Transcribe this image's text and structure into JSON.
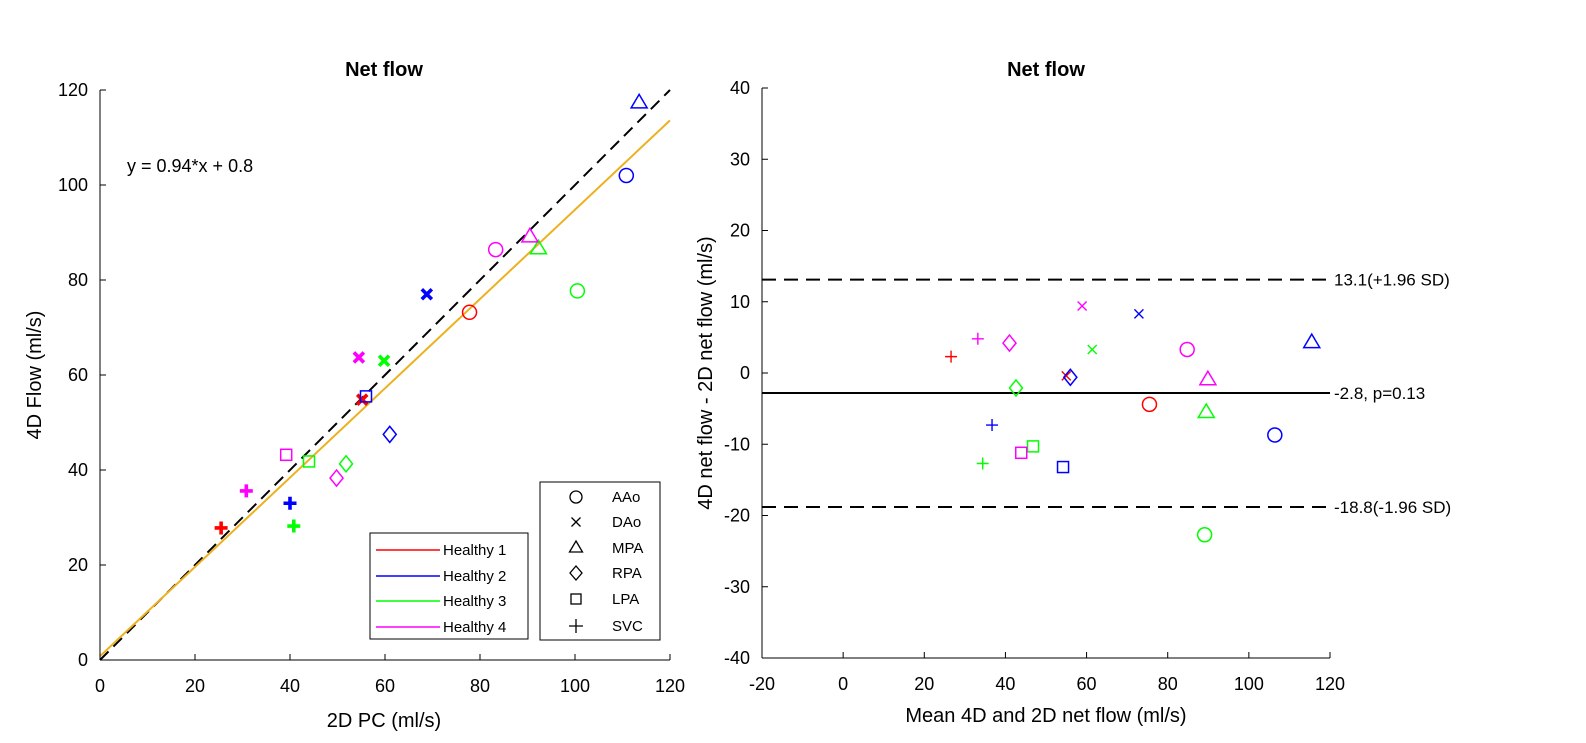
{
  "figure": {
    "background": "#ffffff",
    "colors": {
      "healthy1": "#ff0000",
      "healthy2": "#0000ff",
      "healthy3": "#00ff00",
      "healthy4": "#ff00ff",
      "fit_line": "#edb120",
      "identity_line": "#000000"
    }
  },
  "chart_data": [
    {
      "type": "scatter",
      "title": "Net flow",
      "xlabel": "2D PC (ml/s)",
      "ylabel": "4D Flow (ml/s)",
      "xlim": [
        0,
        120
      ],
      "ylim": [
        0,
        120
      ],
      "xticks": [
        0,
        20,
        40,
        60,
        80,
        100,
        120
      ],
      "yticks": [
        0,
        20,
        40,
        60,
        80,
        100,
        120
      ],
      "equation_text": "y = 0.94*x + 0.8",
      "fit": {
        "slope": 0.94,
        "intercept": 0.8
      },
      "identity_line": {
        "slope": 1,
        "intercept": 0,
        "style": "dashed"
      },
      "legend_healthy": {
        "location": "bottom-right",
        "entries": [
          {
            "label": "Healthy 1",
            "color": "#ff0000"
          },
          {
            "label": "Healthy 2",
            "color": "#0000ff"
          },
          {
            "label": "Healthy 3",
            "color": "#00ff00"
          },
          {
            "label": "Healthy 4",
            "color": "#ff00ff"
          }
        ]
      },
      "legend_vessels": {
        "location": "bottom-right",
        "entries": [
          {
            "label": "AAo",
            "marker": "circle"
          },
          {
            "label": "DAo",
            "marker": "x"
          },
          {
            "label": "MPA",
            "marker": "triangle"
          },
          {
            "label": "RPA",
            "marker": "diamond"
          },
          {
            "label": "LPA",
            "marker": "square"
          },
          {
            "label": "SVC",
            "marker": "plus"
          }
        ]
      },
      "points": [
        {
          "subject": "Healthy 1",
          "vessel": "AAo",
          "x": 77.8,
          "y": 73.2
        },
        {
          "subject": "Healthy 1",
          "vessel": "DAo",
          "x": 55.2,
          "y": 54.8
        },
        {
          "subject": "Healthy 1",
          "vessel": "SVC",
          "x": 25.5,
          "y": 27.8
        },
        {
          "subject": "Healthy 2",
          "vessel": "AAo",
          "x": 110.8,
          "y": 102.0
        },
        {
          "subject": "Healthy 2",
          "vessel": "DAo",
          "x": 68.8,
          "y": 77.0
        },
        {
          "subject": "Healthy 2",
          "vessel": "MPA",
          "x": 113.5,
          "y": 117.5
        },
        {
          "subject": "Healthy 2",
          "vessel": "RPA",
          "x": 61.0,
          "y": 47.5
        },
        {
          "subject": "Healthy 2",
          "vessel": "LPA",
          "x": 56.0,
          "y": 55.5
        },
        {
          "subject": "Healthy 2",
          "vessel": "SVC",
          "x": 40.0,
          "y": 33.0
        },
        {
          "subject": "Healthy 3",
          "vessel": "AAo",
          "x": 100.5,
          "y": 77.7
        },
        {
          "subject": "Healthy 3",
          "vessel": "DAo",
          "x": 59.8,
          "y": 63.0
        },
        {
          "subject": "Healthy 3",
          "vessel": "MPA",
          "x": 92.3,
          "y": 86.8
        },
        {
          "subject": "Healthy 3",
          "vessel": "RPA",
          "x": 51.8,
          "y": 41.3
        },
        {
          "subject": "Healthy 3",
          "vessel": "LPA",
          "x": 44.0,
          "y": 41.8
        },
        {
          "subject": "Healthy 3",
          "vessel": "SVC",
          "x": 40.8,
          "y": 28.2
        },
        {
          "subject": "Healthy 4",
          "vessel": "AAo",
          "x": 83.3,
          "y": 86.4
        },
        {
          "subject": "Healthy 4",
          "vessel": "DAo",
          "x": 54.5,
          "y": 63.7
        },
        {
          "subject": "Healthy 4",
          "vessel": "MPA",
          "x": 90.5,
          "y": 89.3
        },
        {
          "subject": "Healthy 4",
          "vessel": "RPA",
          "x": 49.8,
          "y": 38.3
        },
        {
          "subject": "Healthy 4",
          "vessel": "LPA",
          "x": 39.2,
          "y": 43.2
        },
        {
          "subject": "Healthy 4",
          "vessel": "SVC",
          "x": 30.8,
          "y": 35.6
        }
      ]
    },
    {
      "type": "scatter",
      "title": "Net flow",
      "xlabel": "Mean 4D and 2D net flow (ml/s)",
      "ylabel": "4D net flow - 2D net flow (ml/s)",
      "xlim": [
        -20,
        120
      ],
      "ylim": [
        -40,
        40
      ],
      "xticks": [
        -20,
        0,
        20,
        40,
        60,
        80,
        100,
        120
      ],
      "yticks": [
        -40,
        -30,
        -20,
        -10,
        0,
        10,
        20,
        30,
        40
      ],
      "mean_line": {
        "value": -2.8,
        "label": "-2.8, p=0.13"
      },
      "upper_limit": {
        "value": 13.1,
        "label": "13.1(+1.96 SD)"
      },
      "lower_limit": {
        "value": -18.8,
        "label": "-18.8(-1.96 SD)"
      },
      "points": [
        {
          "subject": "Healthy 1",
          "vessel": "AAo",
          "x": 75.5,
          "y": -4.4
        },
        {
          "subject": "Healthy 1",
          "vessel": "DAo",
          "x": 55.0,
          "y": -0.4
        },
        {
          "subject": "Healthy 1",
          "vessel": "SVC",
          "x": 26.6,
          "y": 2.3
        },
        {
          "subject": "Healthy 2",
          "vessel": "AAo",
          "x": 106.4,
          "y": -8.7
        },
        {
          "subject": "Healthy 2",
          "vessel": "DAo",
          "x": 72.9,
          "y": 8.3
        },
        {
          "subject": "Healthy 2",
          "vessel": "MPA",
          "x": 115.5,
          "y": 4.4
        },
        {
          "subject": "Healthy 2",
          "vessel": "RPA",
          "x": 56.0,
          "y": -0.6
        },
        {
          "subject": "Healthy 2",
          "vessel": "LPA",
          "x": 54.2,
          "y": -13.2
        },
        {
          "subject": "Healthy 2",
          "vessel": "SVC",
          "x": 36.7,
          "y": -7.3
        },
        {
          "subject": "Healthy 3",
          "vessel": "AAo",
          "x": 89.1,
          "y": -22.7
        },
        {
          "subject": "Healthy 3",
          "vessel": "DAo",
          "x": 61.4,
          "y": 3.3
        },
        {
          "subject": "Healthy 3",
          "vessel": "MPA",
          "x": 89.5,
          "y": -5.4
        },
        {
          "subject": "Healthy 3",
          "vessel": "RPA",
          "x": 42.6,
          "y": -2.1
        },
        {
          "subject": "Healthy 3",
          "vessel": "LPA",
          "x": 46.8,
          "y": -10.3
        },
        {
          "subject": "Healthy 3",
          "vessel": "SVC",
          "x": 34.4,
          "y": -12.7
        },
        {
          "subject": "Healthy 4",
          "vessel": "AAo",
          "x": 84.8,
          "y": 3.3
        },
        {
          "subject": "Healthy 4",
          "vessel": "DAo",
          "x": 58.9,
          "y": 9.4
        },
        {
          "subject": "Healthy 4",
          "vessel": "MPA",
          "x": 89.9,
          "y": -0.8
        },
        {
          "subject": "Healthy 4",
          "vessel": "RPA",
          "x": 41.0,
          "y": 4.2
        },
        {
          "subject": "Healthy 4",
          "vessel": "LPA",
          "x": 43.9,
          "y": -11.2
        },
        {
          "subject": "Healthy 4",
          "vessel": "SVC",
          "x": 33.2,
          "y": 4.8
        }
      ]
    }
  ]
}
